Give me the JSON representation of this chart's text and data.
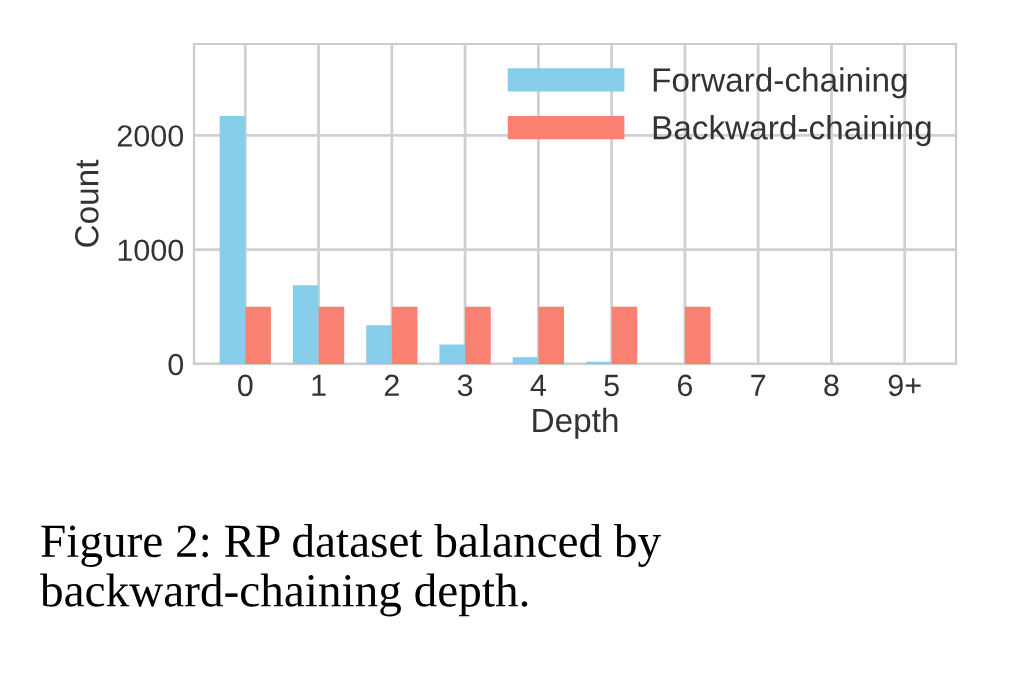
{
  "chart_data": {
    "type": "bar",
    "xlabel": "Depth",
    "ylabel": "Count",
    "categories": [
      "0",
      "1",
      "2",
      "3",
      "4",
      "5",
      "6",
      "7",
      "8",
      "9+"
    ],
    "series": [
      {
        "name": "Forward-chaining",
        "color": "#87ceeb",
        "values": [
          2170,
          690,
          340,
          170,
          60,
          20,
          0,
          0,
          0,
          0
        ]
      },
      {
        "name": "Backward-chaining",
        "color": "#fa8072",
        "values": [
          500,
          500,
          500,
          500,
          500,
          500,
          500,
          0,
          0,
          0
        ]
      }
    ],
    "ylim": [
      0,
      2800
    ],
    "yticks": [
      0,
      1000,
      2000
    ],
    "grid": true,
    "legend": "top right",
    "annotations": [
      "Figure 2: RP dataset balanced by backward-chaining depth."
    ]
  }
}
